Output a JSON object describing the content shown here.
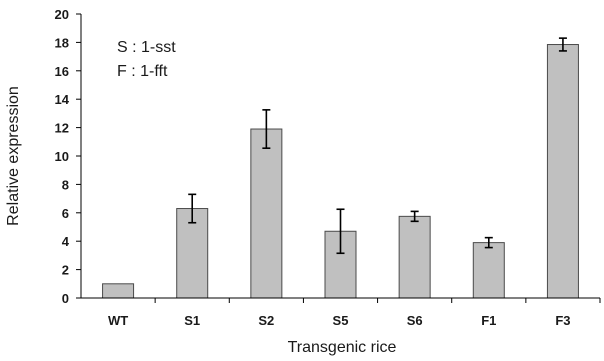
{
  "chart_data": {
    "type": "bar",
    "categories": [
      "WT",
      "S1",
      "S2",
      "S5",
      "S6",
      "F1",
      "F3"
    ],
    "values": [
      1.0,
      6.3,
      11.9,
      4.7,
      5.75,
      3.9,
      17.85
    ],
    "errors": [
      0,
      1.0,
      1.35,
      1.55,
      0.35,
      0.35,
      0.45
    ],
    "xlabel": "Transgenic rice",
    "ylabel": "Relative expression",
    "ylim": [
      0,
      20
    ],
    "yticks": [
      "0",
      "2",
      "4",
      "6",
      "8",
      "10",
      "12",
      "14",
      "16",
      "18",
      "20"
    ],
    "annotations": [
      "S : 1-sst",
      "F : 1-fft"
    ],
    "grid": false,
    "colors": {
      "bar_fill": "#c0c0c0",
      "bar_stroke": "#4a4a4a",
      "axis": "#000000"
    }
  }
}
